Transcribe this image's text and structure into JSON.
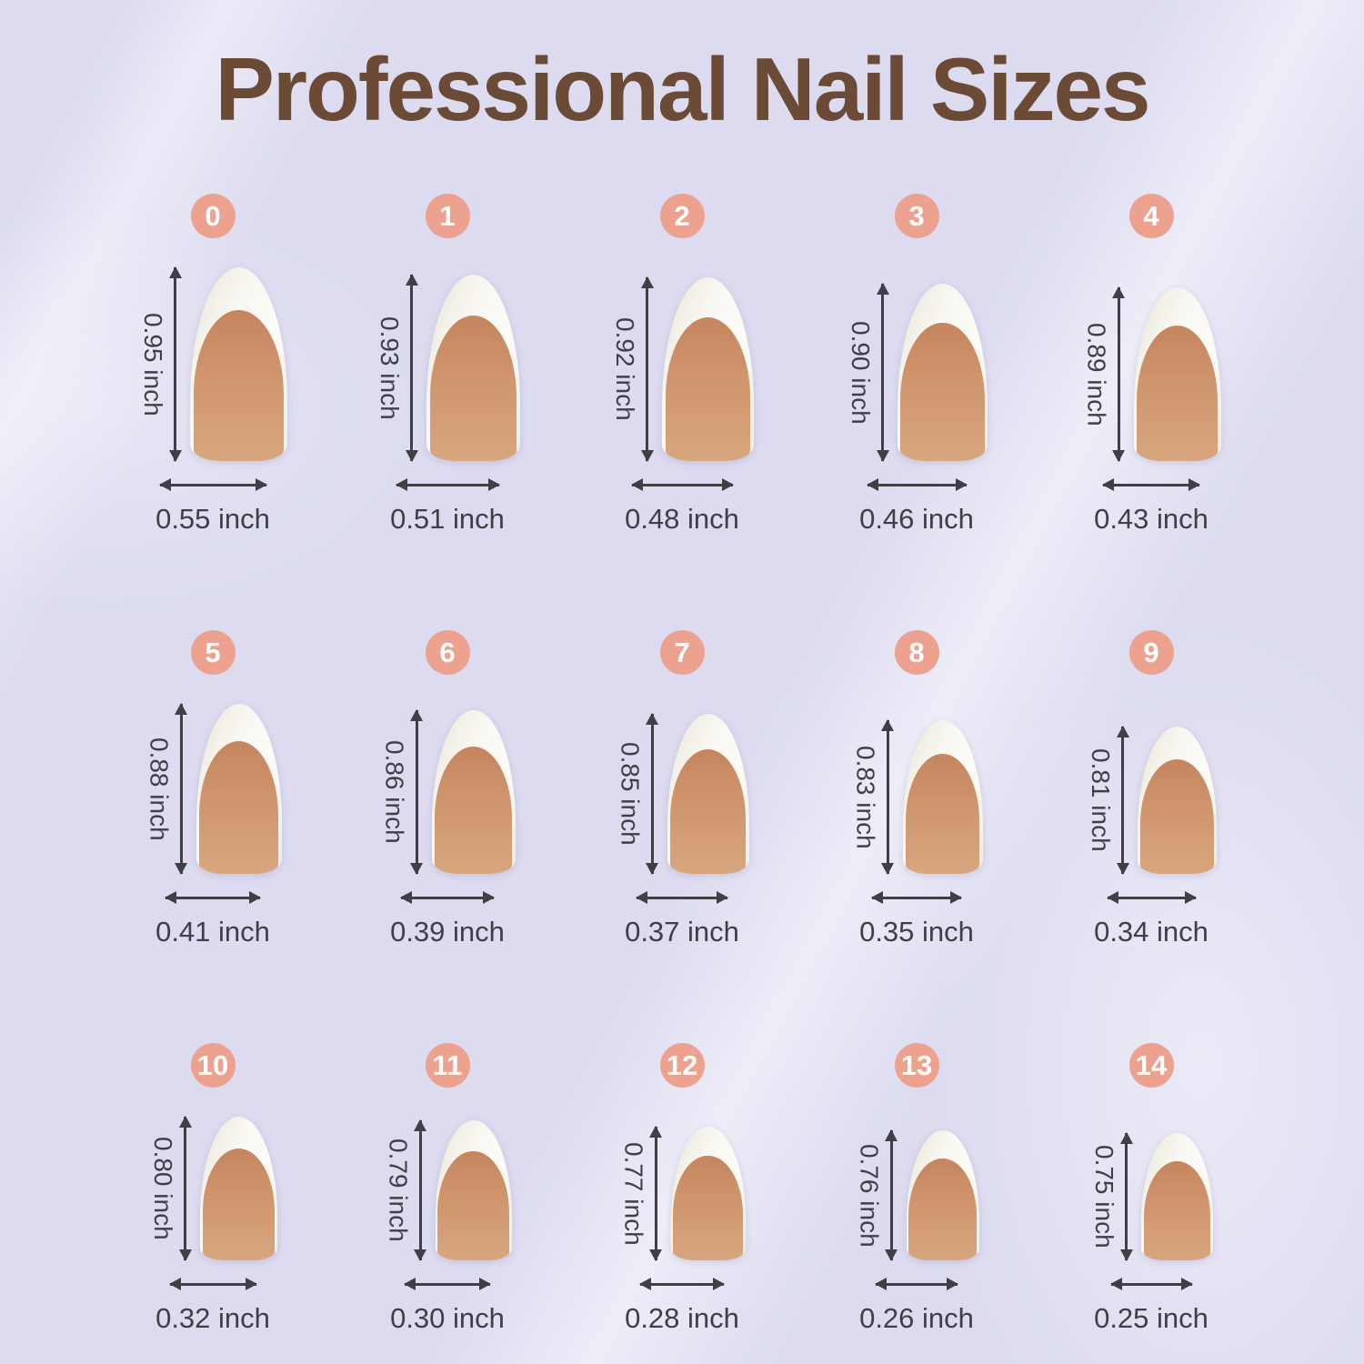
{
  "title": "Professional Nail Sizes",
  "unit": "inch",
  "colors": {
    "background": "#dcdbf0",
    "title_text": "#6b4a36",
    "badge": "#eca28e",
    "badge_text": "#ffffff",
    "measure_text": "#3f3f45",
    "arrow": "#3f3f45",
    "nail_tip_white": "#f9f8f3",
    "nail_bed_nude": "#cf946c"
  },
  "sizes": [
    {
      "id": "0",
      "height_in": 0.95,
      "width_in": 0.55,
      "height_label": "0.95 inch",
      "width_label": "0.55 inch"
    },
    {
      "id": "1",
      "height_in": 0.93,
      "width_in": 0.51,
      "height_label": "0.93 inch",
      "width_label": "0.51 inch"
    },
    {
      "id": "2",
      "height_in": 0.92,
      "width_in": 0.48,
      "height_label": "0.92 inch",
      "width_label": "0.48 inch"
    },
    {
      "id": "3",
      "height_in": 0.9,
      "width_in": 0.46,
      "height_label": "0.90 inch",
      "width_label": "0.46 inch"
    },
    {
      "id": "4",
      "height_in": 0.89,
      "width_in": 0.43,
      "height_label": "0.89 inch",
      "width_label": "0.43 inch"
    },
    {
      "id": "5",
      "height_in": 0.88,
      "width_in": 0.41,
      "height_label": "0.88 inch",
      "width_label": "0.41 inch"
    },
    {
      "id": "6",
      "height_in": 0.86,
      "width_in": 0.39,
      "height_label": "0.86 inch",
      "width_label": "0.39 inch"
    },
    {
      "id": "7",
      "height_in": 0.85,
      "width_in": 0.37,
      "height_label": "0.85 inch",
      "width_label": "0.37 inch"
    },
    {
      "id": "8",
      "height_in": 0.83,
      "width_in": 0.35,
      "height_label": "0.83 inch",
      "width_label": "0.35 inch"
    },
    {
      "id": "9",
      "height_in": 0.81,
      "width_in": 0.34,
      "height_label": "0.81 inch",
      "width_label": "0.34 inch"
    },
    {
      "id": "10",
      "height_in": 0.8,
      "width_in": 0.32,
      "height_label": "0.80 inch",
      "width_label": "0.32 inch"
    },
    {
      "id": "11",
      "height_in": 0.79,
      "width_in": 0.3,
      "height_label": "0.79 inch",
      "width_label": "0.30 inch"
    },
    {
      "id": "12",
      "height_in": 0.77,
      "width_in": 0.28,
      "height_label": "0.77 inch",
      "width_label": "0.28 inch"
    },
    {
      "id": "13",
      "height_in": 0.76,
      "width_in": 0.26,
      "height_label": "0.76 inch",
      "width_label": "0.26 inch"
    },
    {
      "id": "14",
      "height_in": 0.75,
      "width_in": 0.25,
      "height_label": "0.75 inch",
      "width_label": "0.25 inch"
    }
  ]
}
